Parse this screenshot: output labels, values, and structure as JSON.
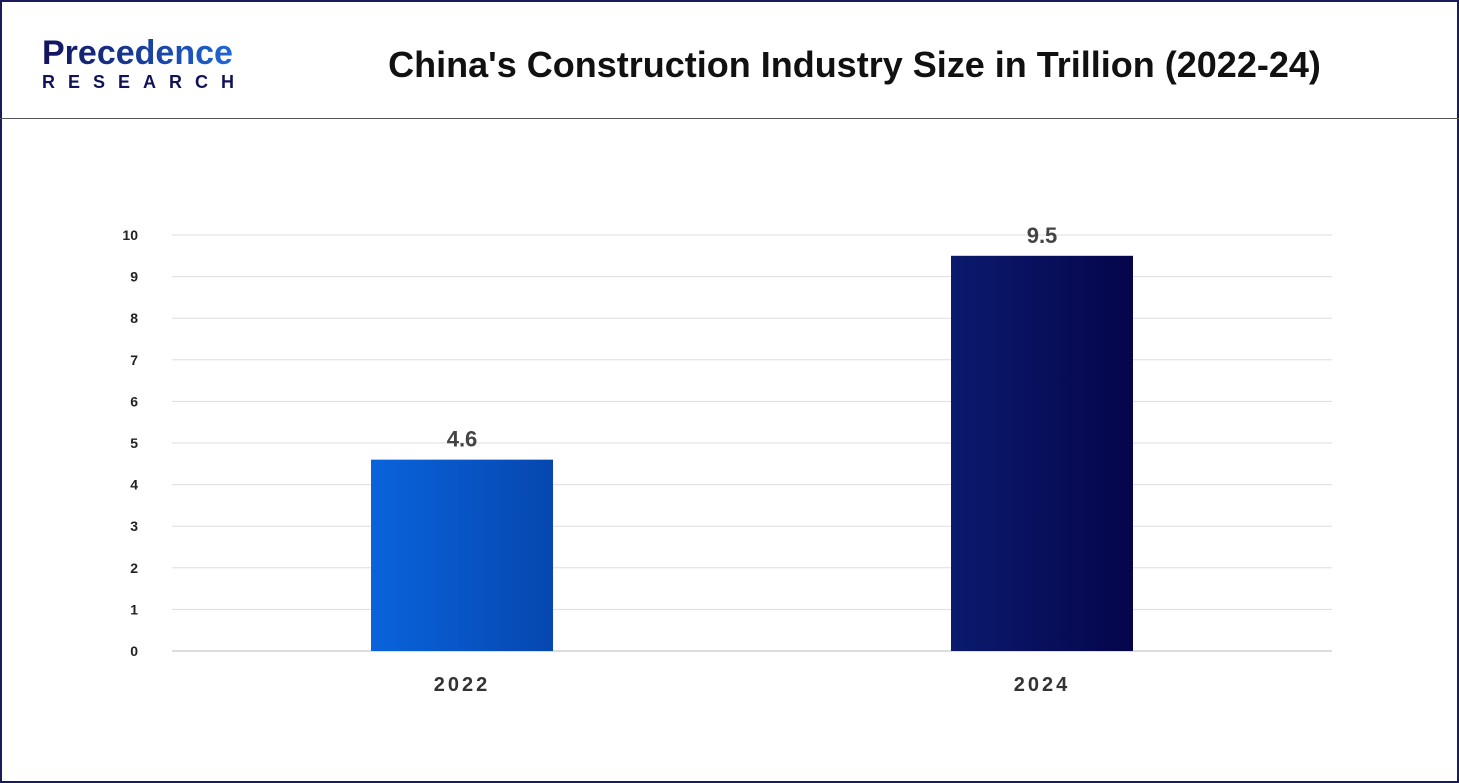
{
  "header": {
    "logo_line1": "Precedence",
    "logo_line2": "RESEARCH",
    "title": "China's Construction Industry Size in Trillion (2022-24)"
  },
  "chart_data": {
    "type": "bar",
    "title": "China's Construction Industry Size in Trillion (2022-24)",
    "categories": [
      "2022",
      "2024"
    ],
    "values": [
      4.6,
      9.5
    ],
    "data_labels": [
      "4.6",
      "9.5"
    ],
    "ylim": [
      0,
      10
    ],
    "yticks": [
      "0",
      "1",
      "2",
      "3",
      "4",
      "5",
      "6",
      "7",
      "8",
      "9",
      "10"
    ],
    "grid": true,
    "colors": [
      "#0a5fd8",
      "#0b0b55"
    ],
    "xlabel": "",
    "ylabel": ""
  }
}
